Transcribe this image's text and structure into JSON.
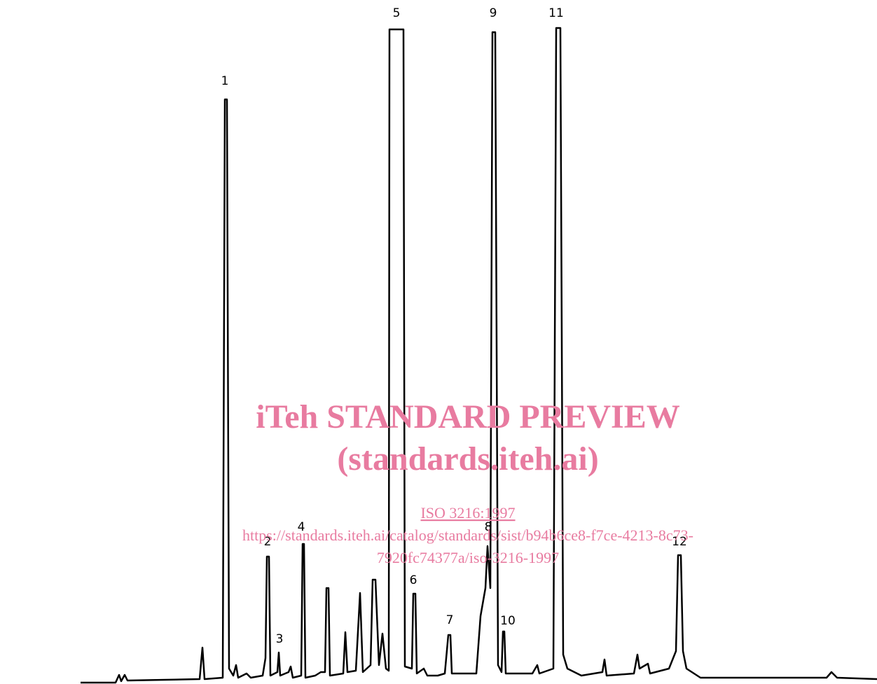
{
  "peaks": [
    "1",
    "2",
    "3",
    "4",
    "5",
    "6",
    "7",
    "8",
    "9",
    "10",
    "11",
    "12"
  ],
  "watermark": {
    "title": "iTeh STANDARD PREVIEW",
    "subtitle": "(standards.iteh.ai)",
    "link": "ISO 3216:1997",
    "url_line1": "https://standards.iteh.ai/catalog/standards/sist/b94b6ce8-f7ce-4213-8c73-",
    "url_line2": "7920fc74377a/iso-3216-1997"
  }
}
